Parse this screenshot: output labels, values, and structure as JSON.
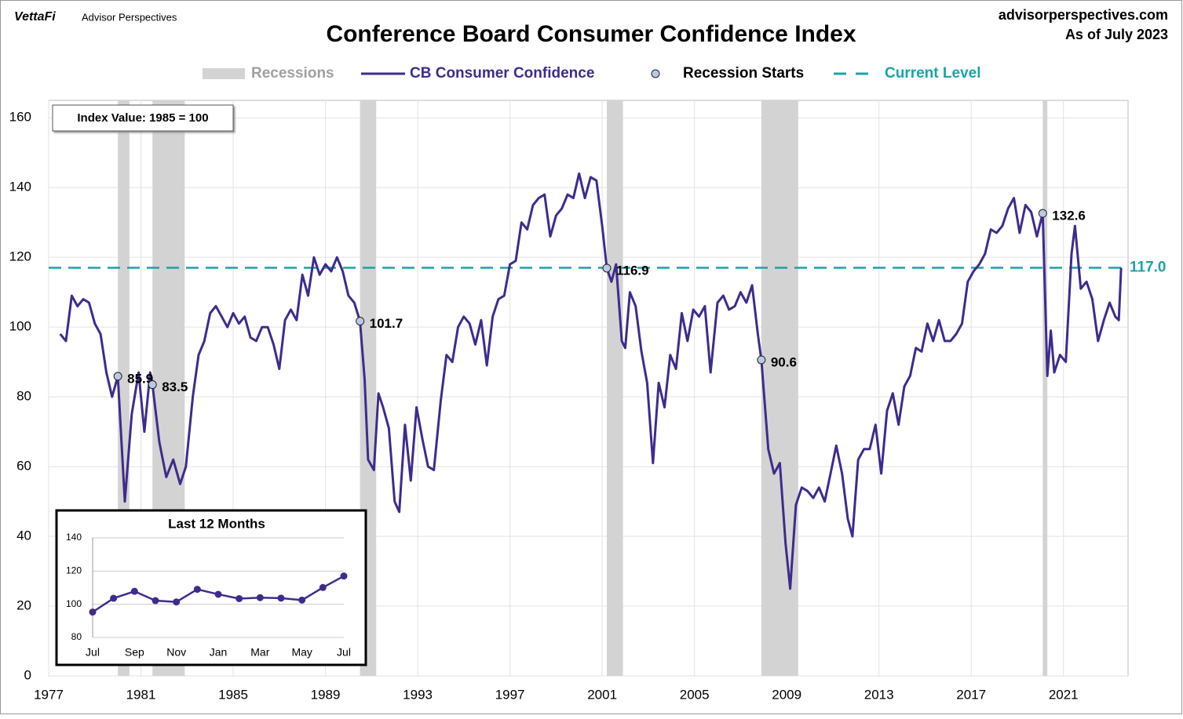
{
  "header": {
    "brand": "VettaFi",
    "sub_brand": "Advisor Perspectives",
    "site": "advisorperspectives.com",
    "as_of": "As of July 2023"
  },
  "chart_data": [
    {
      "type": "line",
      "title": "Conference Board Consumer Confidence Index",
      "annotation": "Index Value: 1985 = 100",
      "xlim": [
        1977,
        2023.8
      ],
      "xticks": [
        1977,
        1981,
        1985,
        1989,
        1993,
        1997,
        2001,
        2005,
        2009,
        2013,
        2017,
        2021
      ],
      "ylim": [
        0,
        165
      ],
      "yticks": [
        0,
        20,
        40,
        60,
        80,
        100,
        120,
        140,
        160
      ],
      "grid": true,
      "recessions": {
        "name": "Recessions",
        "color": "#d3d3d3",
        "spans": [
          [
            1980.0,
            1980.5
          ],
          [
            1981.5,
            1982.9
          ],
          [
            1990.5,
            1991.2
          ],
          [
            2001.2,
            2001.9
          ],
          [
            2007.9,
            2009.5
          ],
          [
            2020.1,
            2020.3
          ]
        ]
      },
      "series": [
        {
          "name": "CB Consumer Confidence",
          "color": "#3f2b8c",
          "x": [
            1977.5,
            1977.75,
            1978,
            1978.25,
            1978.5,
            1978.75,
            1979,
            1979.25,
            1979.5,
            1979.75,
            1980,
            1980.3,
            1980.6,
            1980.9,
            1981.15,
            1981.4,
            1981.5,
            1981.8,
            1982.1,
            1982.4,
            1982.7,
            1982.95,
            1983.25,
            1983.5,
            1983.75,
            1984,
            1984.25,
            1984.5,
            1984.75,
            1985,
            1985.25,
            1985.5,
            1985.75,
            1986,
            1986.25,
            1986.5,
            1986.75,
            1987,
            1987.25,
            1987.5,
            1987.75,
            1988,
            1988.25,
            1988.5,
            1988.75,
            1989,
            1989.25,
            1989.5,
            1989.75,
            1990,
            1990.25,
            1990.5,
            1990.7,
            1990.85,
            1991.1,
            1991.3,
            1991.5,
            1991.75,
            1992,
            1992.2,
            1992.45,
            1992.7,
            1992.95,
            1993.2,
            1993.45,
            1993.7,
            1994,
            1994.25,
            1994.5,
            1994.75,
            1995,
            1995.25,
            1995.5,
            1995.75,
            1996,
            1996.25,
            1996.5,
            1996.75,
            1997,
            1997.25,
            1997.5,
            1997.75,
            1998,
            1998.25,
            1998.5,
            1998.75,
            1999,
            1999.25,
            1999.5,
            1999.75,
            2000,
            2000.25,
            2000.5,
            2000.75,
            2001,
            2001.2,
            2001.4,
            2001.6,
            2001.85,
            2002,
            2002.2,
            2002.45,
            2002.7,
            2002.95,
            2003.2,
            2003.45,
            2003.7,
            2003.95,
            2004.2,
            2004.45,
            2004.7,
            2004.95,
            2005.2,
            2005.45,
            2005.7,
            2006,
            2006.25,
            2006.5,
            2006.75,
            2007,
            2007.25,
            2007.5,
            2007.75,
            2007.9,
            2008.2,
            2008.45,
            2008.7,
            2008.95,
            2009.15,
            2009.4,
            2009.65,
            2009.9,
            2010.15,
            2010.4,
            2010.65,
            2010.9,
            2011.15,
            2011.4,
            2011.65,
            2011.85,
            2012.1,
            2012.35,
            2012.6,
            2012.85,
            2013.1,
            2013.35,
            2013.6,
            2013.85,
            2014.1,
            2014.35,
            2014.6,
            2014.85,
            2015.1,
            2015.35,
            2015.6,
            2015.85,
            2016.1,
            2016.35,
            2016.6,
            2016.85,
            2017.1,
            2017.35,
            2017.6,
            2017.85,
            2018.1,
            2018.35,
            2018.6,
            2018.85,
            2019.1,
            2019.35,
            2019.6,
            2019.85,
            2020.1,
            2020.3,
            2020.45,
            2020.6,
            2020.85,
            2021.1,
            2021.35,
            2021.5,
            2021.75,
            2022,
            2022.25,
            2022.5,
            2022.75,
            2023,
            2023.25,
            2023.4,
            2023.5
          ],
          "values": [
            98,
            96,
            109,
            106,
            108,
            107,
            101,
            98,
            87,
            80,
            85.9,
            50,
            75,
            87,
            70,
            87,
            83.5,
            67,
            57,
            62,
            55,
            60,
            80,
            92,
            96,
            104,
            106,
            103,
            100,
            104,
            101,
            103,
            97,
            96,
            100,
            100,
            95,
            88,
            102,
            105,
            102,
            115,
            109,
            120,
            115,
            118,
            116,
            120,
            116,
            109,
            107,
            101.7,
            85,
            62,
            59,
            81,
            77,
            71,
            50,
            47,
            72,
            56,
            77,
            68,
            60,
            59,
            79,
            92,
            90,
            100,
            103,
            101,
            95,
            102,
            89,
            103,
            108,
            109,
            118,
            119,
            130,
            128,
            135,
            137,
            138,
            126,
            132,
            134,
            138,
            137,
            144,
            137,
            143,
            142,
            129,
            116.9,
            113,
            118,
            96,
            94,
            110,
            106,
            93,
            84,
            61,
            84,
            77,
            92,
            88,
            104,
            96,
            105,
            103,
            106,
            87,
            107,
            109,
            105,
            106,
            110,
            107,
            112,
            98,
            90.6,
            65,
            58,
            61,
            38,
            25,
            49,
            54,
            53,
            51,
            54,
            50,
            58,
            66,
            58,
            45,
            40,
            62,
            65,
            65,
            72,
            58,
            76,
            81,
            72,
            83,
            86,
            94,
            93,
            101,
            96,
            102,
            96,
            96,
            98,
            101,
            113,
            116,
            118,
            121,
            128,
            127,
            129,
            134,
            137,
            127,
            135,
            133,
            126,
            132.6,
            86,
            99,
            87,
            92,
            90,
            121,
            129,
            111,
            113,
            108,
            96,
            102,
            107,
            103,
            102,
            117.0
          ]
        }
      ],
      "recession_starts": {
        "name": "Recession Starts",
        "color": "#b9c9e6",
        "x": [
          1980.0,
          1981.5,
          1990.5,
          2001.2,
          2007.9,
          2020.1
        ],
        "values": [
          85.9,
          83.5,
          101.7,
          116.9,
          90.6,
          132.6
        ]
      },
      "current_level": {
        "name": "Current Level",
        "color": "#1ba3a8",
        "value": 117,
        "value_label": "117.0"
      }
    },
    {
      "type": "line",
      "title": "Last 12 Months",
      "categories": [
        "Jul",
        null,
        "Sep",
        null,
        "Nov",
        null,
        "Jan",
        null,
        "Mar",
        null,
        "May",
        null,
        "Jul"
      ],
      "values": [
        95.3,
        103.6,
        107.8,
        102.2,
        101.4,
        109.0,
        106.0,
        103.4,
        104.0,
        103.7,
        102.5,
        110.1,
        117.0
      ],
      "color": "#3f2b8c",
      "ylim": [
        80,
        140
      ],
      "yticks": [
        80,
        100,
        120,
        140
      ],
      "grid": true
    }
  ]
}
